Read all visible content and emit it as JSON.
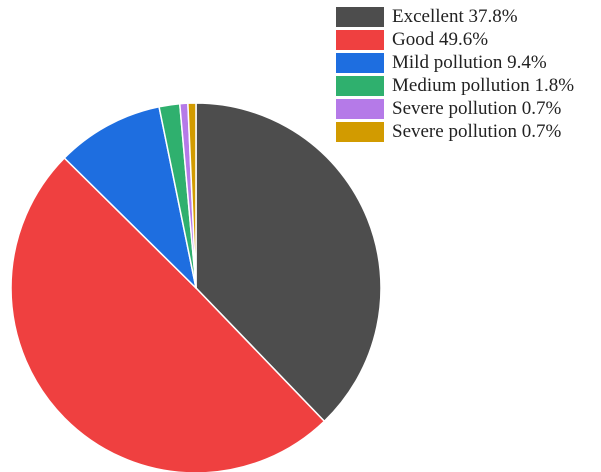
{
  "chart_data": {
    "type": "pie",
    "title": "",
    "slices": [
      {
        "name": "Excellent",
        "value": 37.8,
        "color": "#4d4d4d"
      },
      {
        "name": "Good",
        "value": 49.6,
        "color": "#ef4040"
      },
      {
        "name": "Mild pollution",
        "value": 9.4,
        "color": "#1e6ee0"
      },
      {
        "name": "Medium pollution",
        "value": 1.8,
        "color": "#2fb06e"
      },
      {
        "name": "Severe pollution",
        "value": 0.7,
        "color": "#b57ae8"
      },
      {
        "name": "Severe pollution",
        "value": 0.7,
        "color": "#d29b00"
      }
    ],
    "legend": {
      "position": "top-right",
      "items": [
        "Excellent 37.8%",
        "Good 49.6%",
        "Mild pollution 9.4%",
        "Medium pollution 1.8%",
        "Severe pollution 0.7%",
        "Severe pollution 0.7%"
      ]
    },
    "slice_border_color": "#ffffff"
  }
}
